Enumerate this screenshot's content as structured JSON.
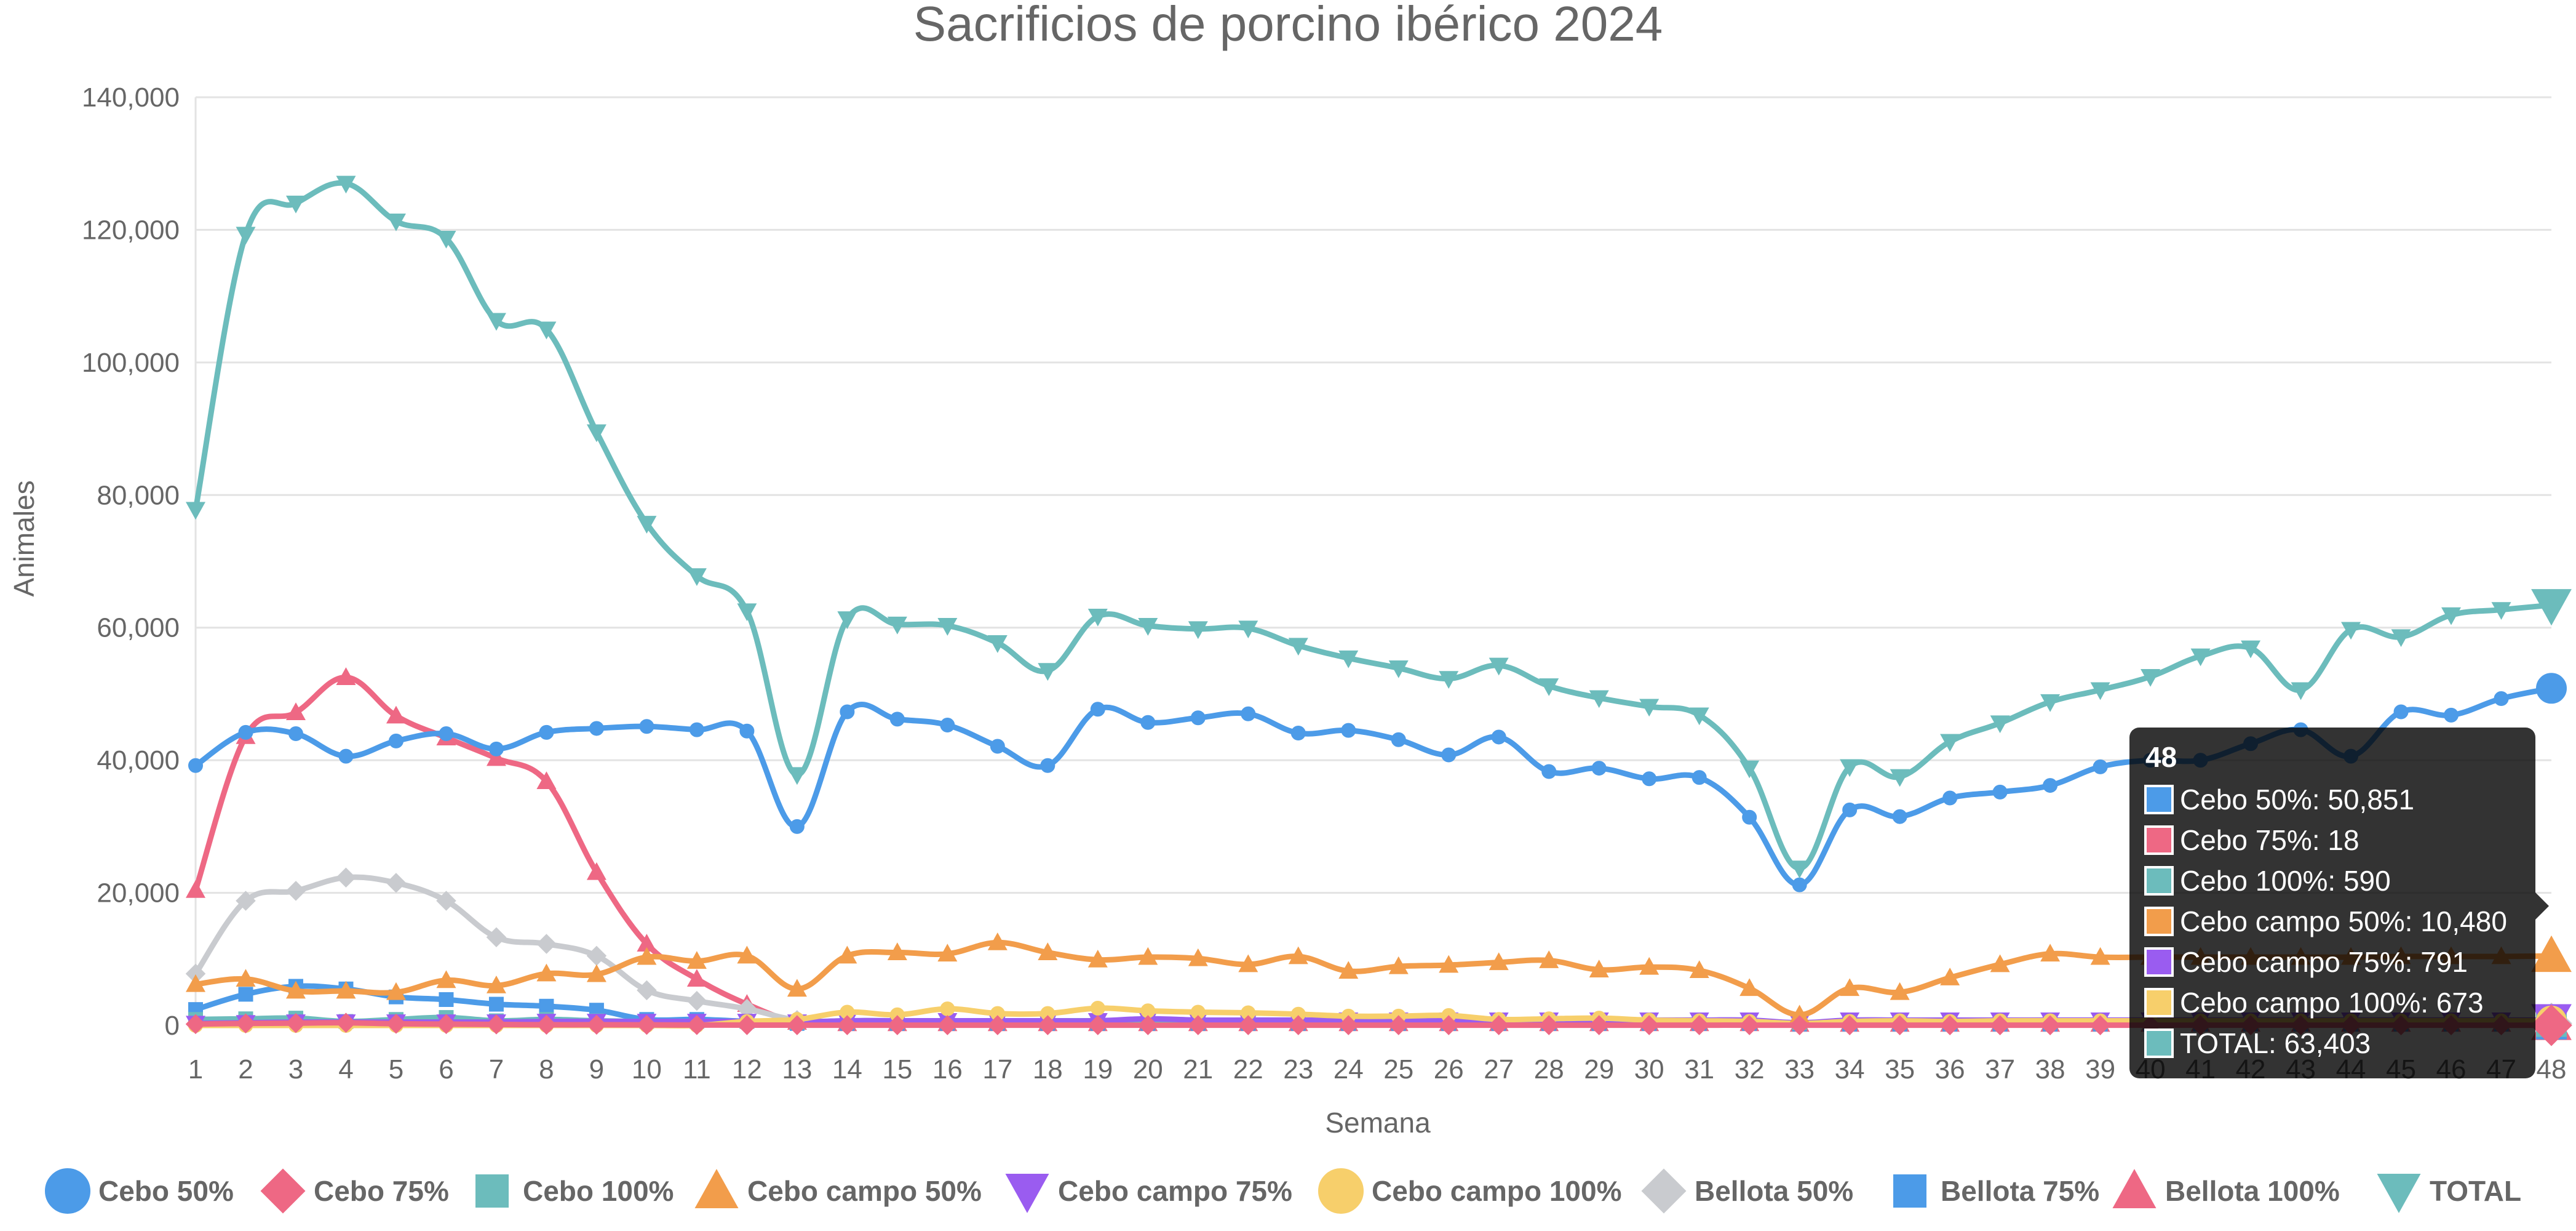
{
  "chart_data": {
    "type": "line",
    "title": "Sacrificios de porcino ibérico 2024",
    "xlabel": "Semana",
    "ylabel": "Animales",
    "ylim": [
      0,
      140000
    ],
    "y_ticks": [
      "0",
      "20,000",
      "40,000",
      "60,000",
      "80,000",
      "100,000",
      "120,000",
      "140,000"
    ],
    "categories": [
      "1",
      "2",
      "3",
      "4",
      "5",
      "6",
      "7",
      "8",
      "9",
      "10",
      "11",
      "12",
      "13",
      "14",
      "15",
      "16",
      "17",
      "18",
      "19",
      "20",
      "21",
      "22",
      "23",
      "24",
      "25",
      "26",
      "27",
      "28",
      "29",
      "30",
      "31",
      "32",
      "33",
      "34",
      "35",
      "36",
      "37",
      "38",
      "39",
      "40",
      "41",
      "42",
      "43",
      "44",
      "45",
      "46",
      "47",
      "48"
    ],
    "grid": true,
    "legend_position": "bottom",
    "series": [
      {
        "name": "Cebo 50%",
        "color": "#4c9be8",
        "marker": "circle",
        "values": [
          39200,
          44200,
          44000,
          40600,
          42900,
          44000,
          41700,
          44200,
          44800,
          45100,
          44600,
          44400,
          30000,
          47300,
          46200,
          45300,
          42100,
          39200,
          47700,
          45700,
          46400,
          47000,
          44100,
          44500,
          43100,
          40800,
          43500,
          38300,
          38800,
          37200,
          37400,
          31400,
          21200,
          32500,
          31500,
          34300,
          35200,
          36200,
          39000,
          40000,
          40000,
          42500,
          44600,
          40600,
          47300,
          46800,
          49300,
          50851
        ]
      },
      {
        "name": "Cebo 75%",
        "color": "#ee6884",
        "marker": "diamond",
        "values": [
          200,
          300,
          350,
          400,
          250,
          200,
          150,
          100,
          100,
          80,
          60,
          50,
          40,
          40,
          40,
          40,
          40,
          40,
          40,
          40,
          40,
          40,
          40,
          40,
          40,
          40,
          40,
          40,
          40,
          40,
          40,
          40,
          30,
          30,
          30,
          30,
          30,
          30,
          30,
          30,
          30,
          30,
          30,
          30,
          30,
          30,
          20,
          18
        ]
      },
      {
        "name": "Cebo 100%",
        "color": "#6cbcbc",
        "marker": "square",
        "values": [
          900,
          1000,
          1100,
          600,
          900,
          1200,
          700,
          900,
          700,
          600,
          600,
          600,
          500,
          700,
          700,
          700,
          700,
          700,
          700,
          700,
          700,
          700,
          700,
          700,
          700,
          700,
          700,
          700,
          700,
          700,
          700,
          700,
          400,
          700,
          700,
          700,
          700,
          700,
          600,
          600,
          600,
          600,
          600,
          600,
          600,
          600,
          600,
          590
        ]
      },
      {
        "name": "Cebo campo 50%",
        "color": "#f29d4b",
        "marker": "triangle",
        "values": [
          6200,
          7000,
          5200,
          5200,
          5000,
          6800,
          6000,
          7800,
          7700,
          10300,
          9700,
          10500,
          5500,
          10500,
          11000,
          10800,
          12500,
          11000,
          9900,
          10300,
          10100,
          9200,
          10400,
          8200,
          8900,
          9100,
          9500,
          9800,
          8400,
          8800,
          8300,
          5600,
          1600,
          5600,
          5000,
          7200,
          9200,
          10800,
          10300,
          10300,
          10300,
          10300,
          10300,
          10300,
          10400,
          10400,
          10400,
          10480
        ]
      },
      {
        "name": "Cebo campo 75%",
        "color": "#9a5cf0",
        "marker": "triangle-down",
        "values": [
          300,
          400,
          500,
          500,
          500,
          500,
          500,
          600,
          600,
          600,
          600,
          600,
          500,
          700,
          700,
          700,
          700,
          700,
          700,
          1000,
          800,
          800,
          800,
          800,
          800,
          800,
          800,
          800,
          800,
          800,
          800,
          800,
          400,
          800,
          800,
          800,
          800,
          800,
          800,
          800,
          800,
          800,
          800,
          800,
          800,
          800,
          800,
          791
        ]
      },
      {
        "name": "Cebo campo 100%",
        "color": "#f7cf6b",
        "marker": "circle",
        "values": [
          0,
          0,
          0,
          0,
          0,
          0,
          0,
          0,
          0,
          0,
          0,
          600,
          900,
          2000,
          1600,
          2500,
          1800,
          1800,
          2600,
          2200,
          2000,
          1900,
          1700,
          1400,
          1400,
          1500,
          900,
          1000,
          1100,
          800,
          700,
          600,
          300,
          600,
          700,
          600,
          700,
          700,
          700,
          700,
          700,
          700,
          700,
          700,
          700,
          700,
          700,
          673
        ]
      },
      {
        "name": "Bellota 50%",
        "color": "#c9cbcf",
        "marker": "diamond",
        "values": [
          7800,
          18800,
          20300,
          22300,
          21500,
          18800,
          13300,
          12300,
          10500,
          5300,
          3700,
          2500,
          800,
          600,
          500,
          500,
          400,
          400,
          400,
          400,
          400,
          400,
          400,
          400,
          400,
          400,
          400,
          400,
          400,
          400,
          400,
          400,
          300,
          300,
          300,
          300,
          300,
          300,
          300,
          300,
          300,
          300,
          300,
          300,
          300,
          300,
          300,
          300
        ]
      },
      {
        "name": "Bellota 75%",
        "color": "#4c9be8",
        "marker": "square",
        "values": [
          2400,
          4700,
          5900,
          5500,
          4300,
          3900,
          3200,
          2900,
          2300,
          900,
          900,
          600,
          300,
          300,
          300,
          300,
          300,
          300,
          300,
          300,
          300,
          300,
          300,
          300,
          300,
          300,
          300,
          300,
          300,
          300,
          300,
          300,
          200,
          200,
          200,
          200,
          200,
          200,
          200,
          200,
          200,
          200,
          200,
          200,
          200,
          200,
          200,
          200
        ]
      },
      {
        "name": "Bellota 100%",
        "color": "#ee6884",
        "marker": "triangle",
        "values": [
          20400,
          43600,
          47200,
          52500,
          46700,
          43400,
          40300,
          36800,
          23100,
          12300,
          7000,
          3200,
          500,
          300,
          300,
          300,
          300,
          300,
          300,
          300,
          300,
          300,
          300,
          300,
          300,
          300,
          300,
          300,
          300,
          300,
          300,
          300,
          200,
          200,
          200,
          200,
          200,
          200,
          200,
          200,
          200,
          200,
          200,
          200,
          200,
          200,
          200,
          200
        ]
      },
      {
        "name": "TOTAL",
        "color": "#6cbcbc",
        "marker": "triangle-down",
        "values": [
          77800,
          119300,
          124000,
          127000,
          121300,
          118700,
          106300,
          105000,
          89500,
          75700,
          67800,
          62500,
          37800,
          61300,
          60500,
          60300,
          57700,
          53500,
          61700,
          60300,
          59800,
          59900,
          57300,
          55400,
          53900,
          52300,
          54300,
          51200,
          49400,
          48100,
          46800,
          38800,
          23700,
          39000,
          37500,
          42800,
          45600,
          48800,
          50600,
          52600,
          55700,
          56900,
          50600,
          59700,
          58600,
          61900,
          62700,
          63403
        ]
      }
    ]
  },
  "tooltip": {
    "title": "48",
    "rows": [
      {
        "label": "Cebo 50%: 50,851",
        "color": "#4c9be8"
      },
      {
        "label": "Cebo 75%: 18",
        "color": "#ee6884"
      },
      {
        "label": "Cebo 100%: 590",
        "color": "#6cbcbc"
      },
      {
        "label": "Cebo campo 50%: 10,480",
        "color": "#f29d4b"
      },
      {
        "label": "Cebo campo 75%: 791",
        "color": "#9a5cf0"
      },
      {
        "label": "Cebo campo 100%: 673",
        "color": "#f7cf6b"
      },
      {
        "label": "TOTAL: 63,403",
        "color": "#6cbcbc"
      }
    ]
  }
}
